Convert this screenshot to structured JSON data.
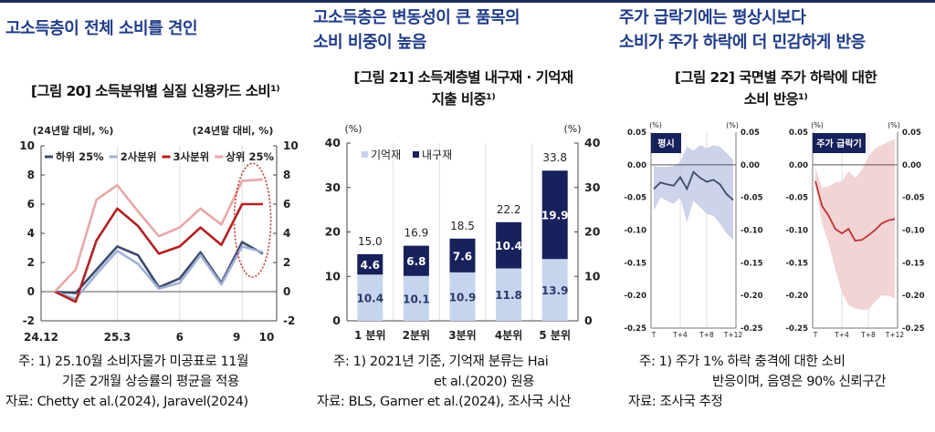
{
  "headlines": [
    {
      "lines": [
        "고소득층이 전체 소비를 견인"
      ]
    },
    {
      "lines": [
        "고소득층은 변동성이 큰 품목의",
        "소비 비중이 높음"
      ]
    },
    {
      "lines": [
        "주가 급락기에는 평상시보다",
        "소비가 주가 하락에 더 민감하게 반응"
      ]
    }
  ],
  "figure_titles": [
    {
      "lines": [
        "[그림 20] 소득분위별 실질 신용카드 소비¹⁾"
      ]
    },
    {
      "lines": [
        "[그림 21] 소득계층별 내구재 · 기억재",
        "지출 비중¹⁾"
      ]
    },
    {
      "lines": [
        "[그림 22] 국면별 주가 하락에 대한",
        "소비 반응¹⁾"
      ]
    }
  ],
  "notes": [
    {
      "lines": [
        "주: 1) 25.10월 소비자물가 미공표로 11월",
        "기준 2개월 상승률의 평균을 적용"
      ],
      "source": "자료: Chetty et al.(2024), Jaravel(2024)"
    },
    {
      "lines": [
        "주: 1) 2021년 기준, 기억재 분류는 Hai",
        "et al.(2020) 원용"
      ],
      "source": "자료: BLS, Garner et al.(2024), 조사국 시산"
    },
    {
      "lines": [
        "주: 1) 주가 1% 하락 충격에 대한 소비",
        "반응이며, 음영은 90% 신뢰구간"
      ],
      "source": "자료: 조사국 추정"
    }
  ],
  "chart_data": [
    {
      "type": "line",
      "unit_left": "(24년말 대비, %)",
      "unit_right": "(24년말 대비, %)",
      "ylim": [
        -2,
        10
      ],
      "yticks": [
        "10",
        "8",
        "6",
        "4",
        "2",
        "0",
        "-2"
      ],
      "x": [
        "24.12",
        "25.1",
        "25.2",
        "25.3",
        "25.4",
        "25.5",
        "25.6",
        "25.7",
        "25.8",
        "25.9",
        "25.10"
      ],
      "xtick_labels": [
        {
          "i": 0,
          "label": "24.12"
        },
        {
          "i": 3,
          "label": "25.3"
        },
        {
          "i": 6,
          "label": "6"
        },
        {
          "i": 9,
          "label": "9"
        },
        {
          "i": 10,
          "label": "10"
        }
      ],
      "series": [
        {
          "name": "하위 25%",
          "color": "#3d4a6b",
          "values": [
            0,
            -0.1,
            1.5,
            3.1,
            2.5,
            0.3,
            0.9,
            2.7,
            0.6,
            3.4,
            2.6
          ]
        },
        {
          "name": "2사분위",
          "color": "#9fb0d8",
          "values": [
            0,
            -0.5,
            1.2,
            2.8,
            1.9,
            0.2,
            0.6,
            2.5,
            0.5,
            3.1,
            2.7
          ]
        },
        {
          "name": "3사분위",
          "color": "#b31f1f",
          "values": [
            0,
            -0.7,
            3.5,
            5.7,
            4.5,
            2.6,
            3.1,
            4.4,
            3.2,
            6.0,
            6.0
          ]
        },
        {
          "name": "상위 25%",
          "color": "#e8a8a8",
          "values": [
            0,
            1.5,
            6.3,
            7.3,
            5.5,
            3.8,
            4.4,
            5.7,
            4.6,
            7.6,
            7.7
          ]
        }
      ],
      "annotation": "highlight-ellipse-last-two-months",
      "ellipse_color": "#c0392b"
    },
    {
      "type": "bar",
      "stacked": true,
      "unit_left": "(%)",
      "unit_right": "(%)",
      "ylim": [
        0,
        40
      ],
      "yticks": [
        "40",
        "30",
        "20",
        "10",
        "0"
      ],
      "categories": [
        "1 분위",
        "2분위",
        "3분위",
        "4분위",
        "5 분위"
      ],
      "series": [
        {
          "name": "기억재",
          "color": "#c6d5ee",
          "values": [
            10.4,
            10.1,
            10.9,
            11.8,
            13.9
          ]
        },
        {
          "name": "내구재",
          "color": "#17215c",
          "values": [
            4.6,
            6.8,
            7.6,
            10.4,
            19.9
          ]
        }
      ],
      "totals": [
        "15.0",
        "16.9",
        "18.5",
        "22.2",
        "33.8"
      ]
    },
    {
      "type": "area",
      "panels": [
        {
          "label": "평시",
          "color": "#3d4a6b",
          "band_color": "#c3cbe6",
          "unit_left": "(%)",
          "unit_right": "(%)",
          "values": [
            -0.037,
            -0.027,
            -0.03,
            -0.032,
            -0.019,
            -0.037,
            -0.011,
            -0.02,
            -0.026,
            -0.023,
            -0.03,
            -0.045,
            -0.054
          ],
          "upper": [
            -0.002,
            -0.003,
            -0.003,
            -0.002,
            0.004,
            0.028,
            0.022,
            0.03,
            0.025,
            0.03,
            0.028,
            0.018,
            0.008
          ],
          "lower": [
            -0.07,
            -0.05,
            -0.055,
            -0.06,
            -0.05,
            -0.088,
            -0.055,
            -0.065,
            -0.075,
            -0.078,
            -0.09,
            -0.105,
            -0.115
          ]
        },
        {
          "label": "주가 급락기",
          "color": "#c0312f",
          "band_color": "#f0cccc",
          "unit_left": "(%)",
          "unit_right": "(%)",
          "values": [
            -0.025,
            -0.063,
            -0.078,
            -0.098,
            -0.105,
            -0.098,
            -0.116,
            -0.115,
            -0.108,
            -0.1,
            -0.09,
            -0.085,
            -0.083
          ],
          "upper": [
            -0.005,
            -0.035,
            -0.033,
            -0.027,
            -0.025,
            -0.01,
            -0.02,
            -0.008,
            0.012,
            0.025,
            0.03,
            0.035,
            0.04
          ],
          "lower": [
            -0.03,
            -0.09,
            -0.12,
            -0.16,
            -0.195,
            -0.215,
            -0.22,
            -0.222,
            -0.222,
            -0.21,
            -0.2,
            -0.2,
            -0.205
          ]
        }
      ],
      "x": [
        "T",
        "T+1",
        "T+2",
        "T+3",
        "T+4",
        "T+5",
        "T+6",
        "T+7",
        "T+8",
        "T+9",
        "T+10",
        "T+11",
        "T+12"
      ],
      "xtick_labels": [
        {
          "i": 0,
          "label": "T"
        },
        {
          "i": 4,
          "label": "T+4"
        },
        {
          "i": 8,
          "label": "T+8"
        },
        {
          "i": 12,
          "label": "T+12"
        }
      ],
      "ylim": [
        -0.25,
        0.05
      ],
      "yticks": [
        "0.05",
        "0.00",
        "-0.05",
        "-0.10",
        "-0.15",
        "-0.20",
        "-0.25"
      ]
    }
  ]
}
